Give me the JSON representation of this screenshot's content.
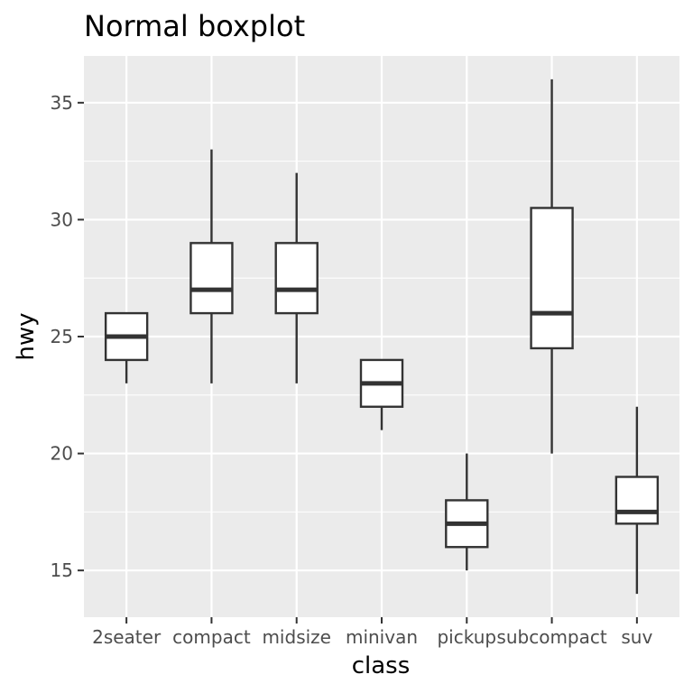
{
  "chart_data": {
    "type": "box",
    "title": "Normal boxplot",
    "xlabel": "class",
    "ylabel": "hwy",
    "ylim": [
      13,
      37
    ],
    "yticks": [
      15,
      20,
      25,
      30,
      35
    ],
    "grid": true,
    "colors": {
      "panel": "#ebebeb",
      "grid": "#ffffff",
      "box_fill": "#ffffff",
      "box_line": "#333333",
      "tick_text": "#4d4d4d",
      "title_text": "#000000"
    },
    "categories": [
      "2seater",
      "compact",
      "midsize",
      "minivan",
      "pickup",
      "subcompact",
      "suv"
    ],
    "boxes": [
      {
        "category": "2seater",
        "lower_whisker": 23,
        "q1": 24,
        "median": 25,
        "q3": 26,
        "upper_whisker": 26
      },
      {
        "category": "compact",
        "lower_whisker": 23,
        "q1": 26,
        "median": 27,
        "q3": 29,
        "upper_whisker": 33
      },
      {
        "category": "midsize",
        "lower_whisker": 23,
        "q1": 26,
        "median": 27,
        "q3": 29,
        "upper_whisker": 32
      },
      {
        "category": "minivan",
        "lower_whisker": 21,
        "q1": 22,
        "median": 23,
        "q3": 24,
        "upper_whisker": 24
      },
      {
        "category": "pickup",
        "lower_whisker": 15,
        "q1": 16,
        "median": 17,
        "q3": 18,
        "upper_whisker": 20
      },
      {
        "category": "subcompact",
        "lower_whisker": 20,
        "q1": 24.5,
        "median": 26,
        "q3": 30.5,
        "upper_whisker": 36
      },
      {
        "category": "suv",
        "lower_whisker": 14,
        "q1": 17,
        "median": 17.5,
        "q3": 19,
        "upper_whisker": 22
      }
    ]
  }
}
